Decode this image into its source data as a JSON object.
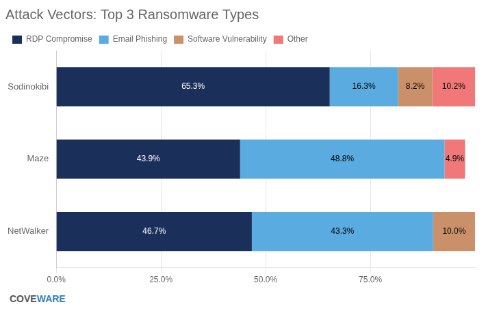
{
  "chart_data": {
    "type": "bar",
    "orientation": "horizontal",
    "stacked": true,
    "title": "Attack Vectors: Top 3 Ransomware Types",
    "categories": [
      "Sodinokibi",
      "Maze",
      "NetWalker"
    ],
    "series": [
      {
        "name": "RDP Compromise",
        "color": "#1b2f5b",
        "values": [
          65.3,
          43.9,
          46.7
        ],
        "value_labels": [
          "65.3%",
          "43.9%",
          "46.7%"
        ]
      },
      {
        "name": "Email Phishing",
        "color": "#5aace0",
        "values": [
          16.3,
          48.8,
          43.3
        ],
        "value_labels": [
          "16.3%",
          "48.8%",
          "43.3%"
        ]
      },
      {
        "name": "Software Vulnerability",
        "color": "#c9906a",
        "values": [
          8.2,
          0.0,
          10.0
        ],
        "value_labels": [
          "8.2%",
          null,
          "10.0%"
        ]
      },
      {
        "name": "Other",
        "color": "#f07878",
        "values": [
          10.2,
          4.9,
          0.0
        ],
        "value_labels": [
          "10.2%",
          "4.9%",
          null
        ]
      }
    ],
    "xlim": [
      0,
      100
    ],
    "xticks": [
      {
        "value": 0,
        "label": "0.0%"
      },
      {
        "value": 25,
        "label": "25.0%"
      },
      {
        "value": 50,
        "label": "50.0%"
      },
      {
        "value": 75,
        "label": "75.0%"
      }
    ],
    "grid": true,
    "legend": "upper left",
    "data_labels": true,
    "annotations": [
      {
        "text": "COVE",
        "color": "#555555"
      },
      {
        "text": "WARE",
        "color": "#3a7fc1"
      }
    ]
  }
}
